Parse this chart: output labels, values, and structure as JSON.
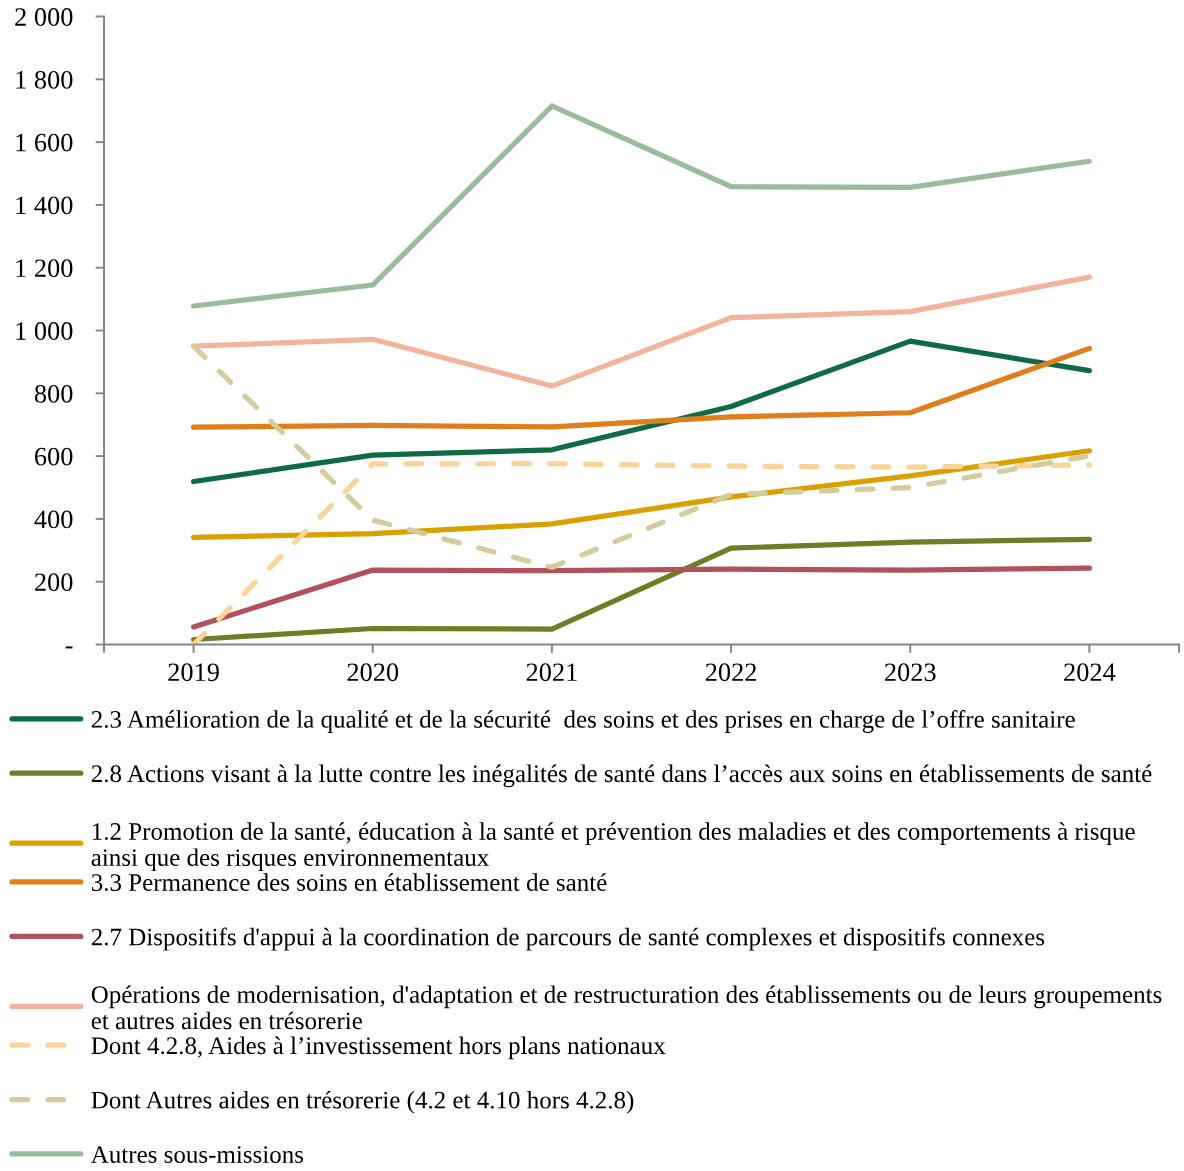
{
  "chart_data": {
    "type": "line",
    "categories": [
      "2019",
      "2020",
      "2021",
      "2022",
      "2023",
      "2024"
    ],
    "ylim": [
      0,
      2000
    ],
    "yticks": [
      {
        "value": 0,
        "label": "-"
      },
      200,
      400,
      600,
      800,
      {
        "value": 1000,
        "label": "1 000"
      },
      {
        "value": 1200,
        "label": "1 200"
      },
      {
        "value": 1400,
        "label": "1 400"
      },
      {
        "value": 1600,
        "label": "1 600"
      },
      {
        "value": 1800,
        "label": "1 800"
      },
      {
        "value": 2000,
        "label": "2 000"
      }
    ],
    "grid": false,
    "legend": "bottom",
    "series": [
      {
        "name": "2.3 Amélioration de la qualité et de la sécurité  des soins et des prises en charge de l’offre sanitaire",
        "color": "#0e6b45",
        "line_style": "solid",
        "values": [
          519,
          603,
          620,
          758,
          966,
          872
        ]
      },
      {
        "name": "2.8 Actions visant à la lutte contre les inégalités de santé dans l’accès aux soins en établissements de santé",
        "color": "#6f7d26",
        "line_style": "solid",
        "values": [
          16,
          51,
          49,
          307,
          326,
          335
        ]
      },
      {
        "name": "1.2 Promotion de la santé, éducation à la santé et prévention des maladies et des comportements à risque ainsi que des risques environnementaux",
        "color": "#d9a000",
        "line_style": "solid",
        "values": [
          341,
          353,
          384,
          470,
          537,
          617
        ]
      },
      {
        "name": "3.3 Permanence des soins en établissement de santé",
        "color": "#e07e1c",
        "line_style": "solid",
        "values": [
          692,
          698,
          693,
          725,
          738,
          943
        ]
      },
      {
        "name": "2.7 Dispositifs d'appui à la coordination de parcours de santé complexes et dispositifs connexes",
        "color": "#b0515c",
        "line_style": "solid",
        "values": [
          56,
          237,
          235,
          240,
          237,
          243
        ]
      },
      {
        "name": "Opérations de modernisation, d'adaptation et de restructuration des établissements ou de leurs groupements et autres aides en trésorerie",
        "color": "#f2b49c",
        "line_style": "solid",
        "values": [
          950,
          972,
          823,
          1041,
          1060,
          1170
        ]
      },
      {
        "name": "Dont 4.2.8, Aides à l’investissement hors plans nationaux",
        "color": "#fcd49a",
        "line_style": "dashed",
        "values": [
          0,
          575,
          576,
          568,
          565,
          572
        ]
      },
      {
        "name": "Dont Autres aides en trésorerie (4.2 et 4.10 hors 4.2.8)",
        "color": "#d4cc9c",
        "line_style": "dashed",
        "values": [
          950,
          396,
          246,
          478,
          500,
          601
        ]
      },
      {
        "name": "Autres sous-missions",
        "color": "#9bbb9e",
        "line_style": "solid",
        "values": [
          1078,
          1145,
          1715,
          1458,
          1456,
          1539
        ]
      }
    ]
  }
}
